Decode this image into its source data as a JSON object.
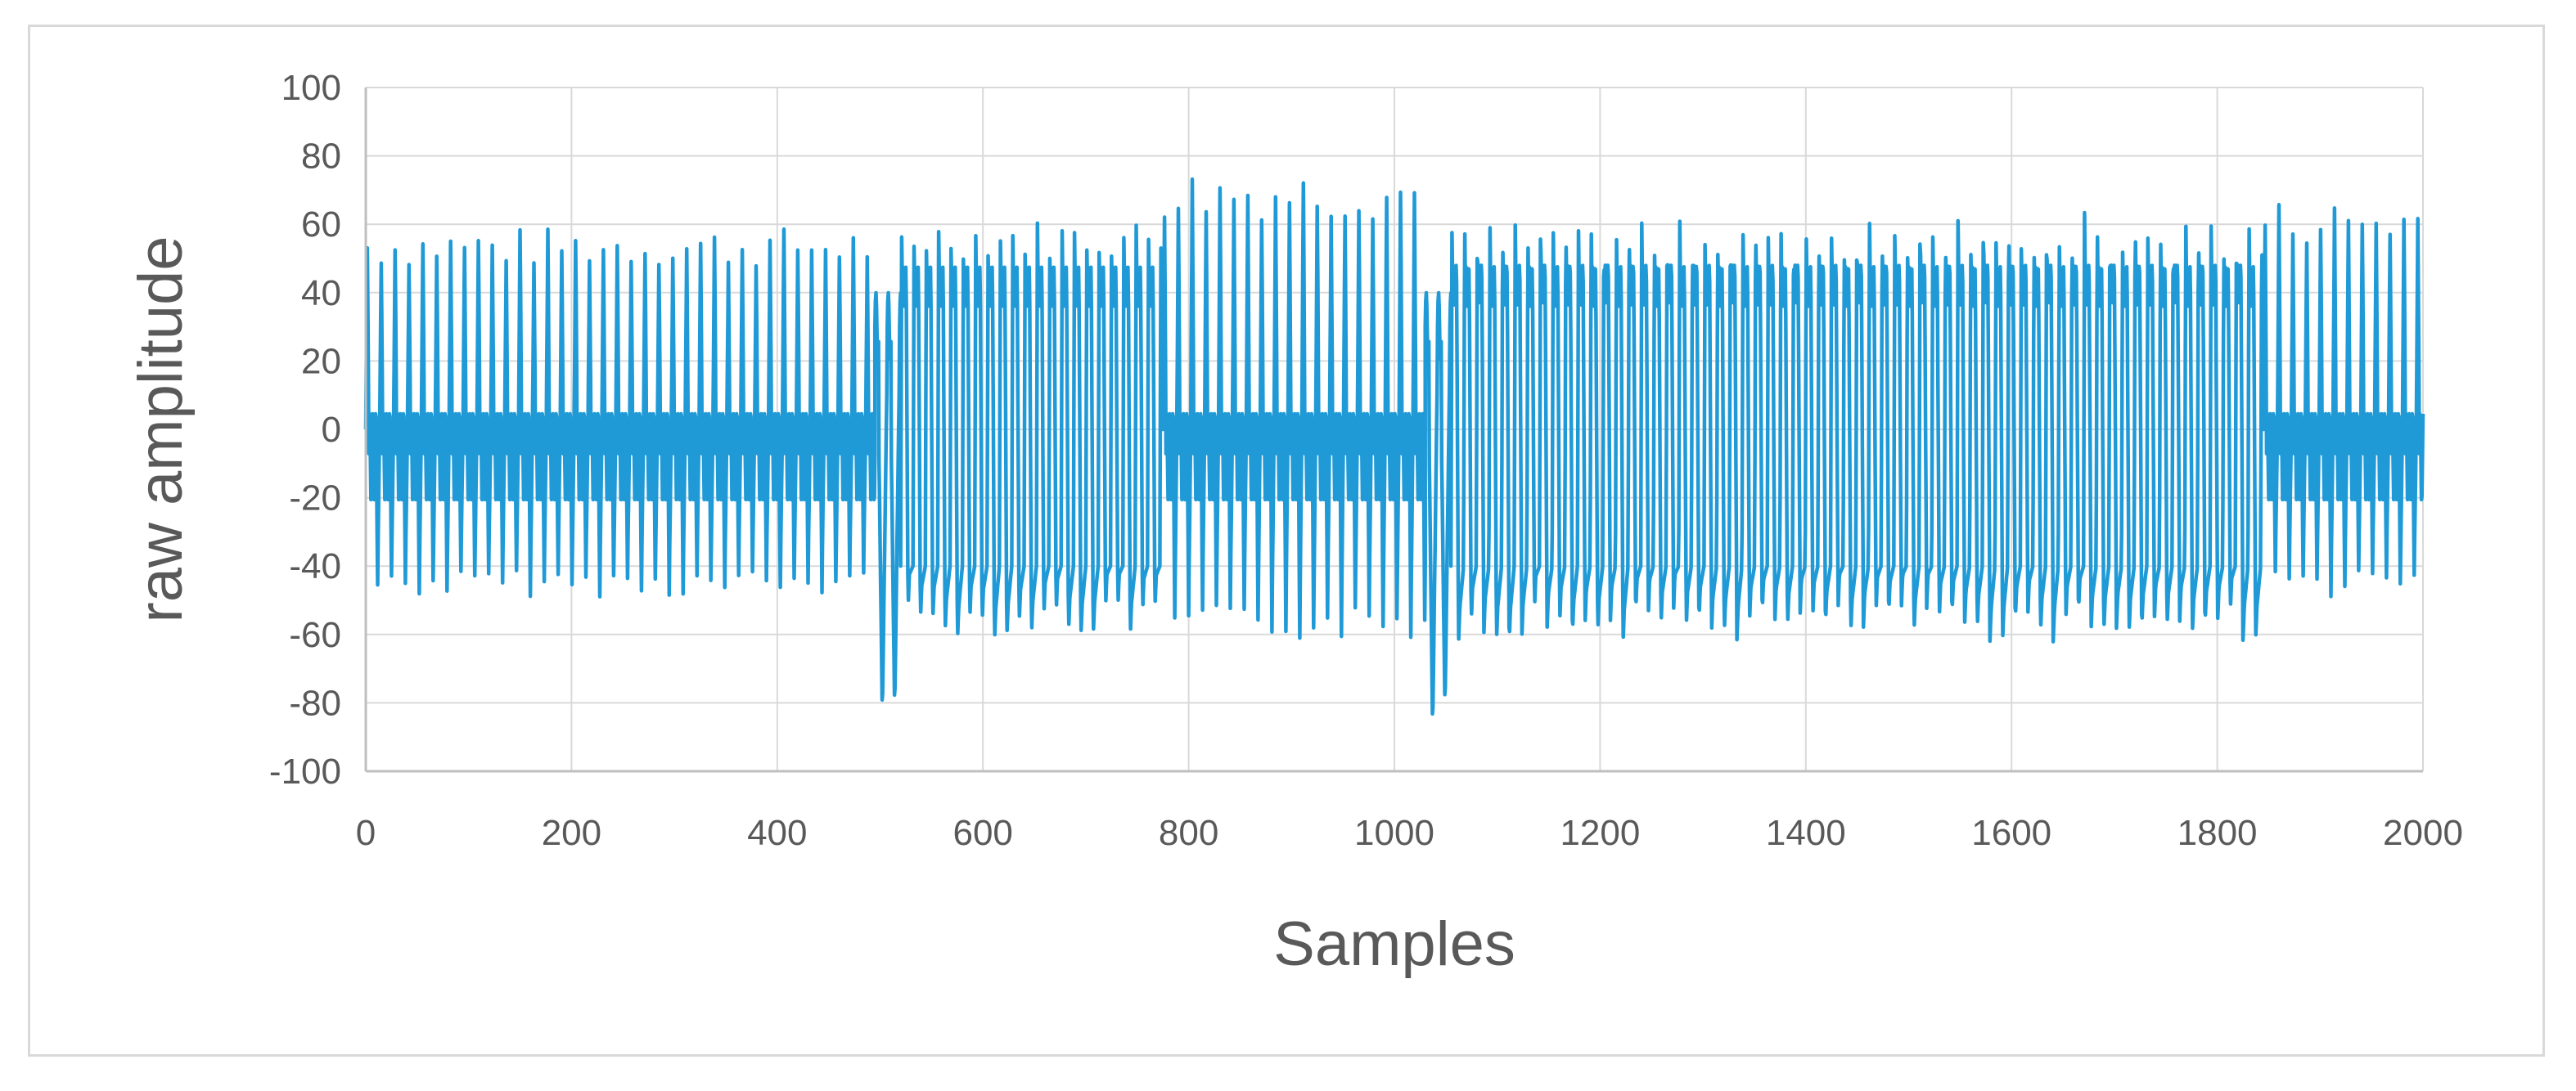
{
  "chart_data": {
    "type": "line",
    "title": "",
    "xlabel": "Samples",
    "ylabel": "raw amplitude",
    "xlim": [
      0,
      2000
    ],
    "ylim": [
      -100,
      100
    ],
    "x_ticks": [
      0,
      200,
      400,
      600,
      800,
      1000,
      1200,
      1400,
      1600,
      1800,
      2000
    ],
    "y_ticks": [
      100,
      80,
      60,
      40,
      20,
      0,
      -20,
      -40,
      -60,
      -80,
      -100
    ],
    "grid": true,
    "legend": "none",
    "series_color": "#1f9ad6",
    "series": [
      {
        "segments": [
          {
            "x_start": 0,
            "x_end": 495,
            "period": 13.5,
            "peak": 58,
            "trough": -58,
            "wave": "dense"
          },
          {
            "x_start": 495,
            "x_end": 520,
            "period": 12,
            "peak": 52,
            "trough": -78,
            "wave": "transition"
          },
          {
            "x_start": 520,
            "x_end": 775,
            "period": 12,
            "peak": 57,
            "trough": -58,
            "wave": "sparse"
          },
          {
            "x_start": 775,
            "x_end": 1030,
            "period": 13.5,
            "peak": 75,
            "trough": -73,
            "wave": "dense"
          },
          {
            "x_start": 1030,
            "x_end": 1055,
            "period": 12,
            "peak": 55,
            "trough": -83,
            "wave": "transition"
          },
          {
            "x_start": 1055,
            "x_end": 1845,
            "period": 12.3,
            "peak": 59,
            "trough": -58,
            "wave": "sparse"
          },
          {
            "x_start": 1845,
            "x_end": 2000,
            "period": 13.5,
            "peak": 66,
            "trough": -58,
            "wave": "dense"
          }
        ]
      }
    ]
  }
}
